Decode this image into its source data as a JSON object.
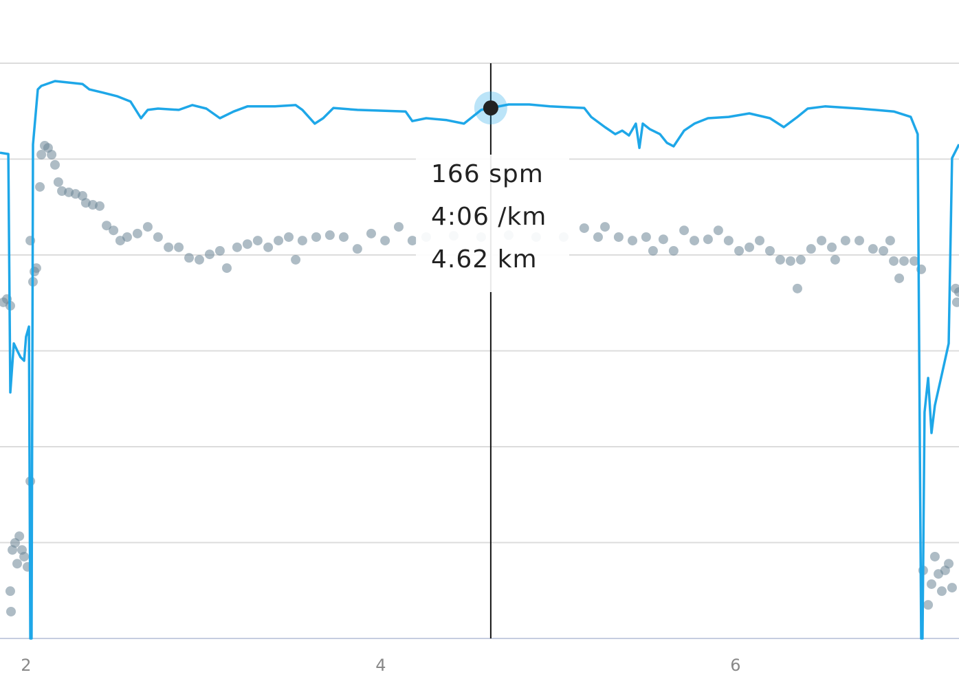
{
  "chart_data": {
    "type": "line-scatter",
    "xlim": [
      1.853,
      7.26
    ],
    "xticks": [
      2,
      4,
      6
    ],
    "ylim": [
      0,
      180
    ],
    "grid_y": [
      0,
      30,
      60,
      90,
      120,
      150,
      180
    ],
    "series": [
      {
        "type": "line",
        "color": "#1ea7e8",
        "x": [
          1.853,
          1.9,
          1.911,
          1.931,
          1.95,
          1.969,
          1.989,
          2.0,
          2.016,
          2.024,
          2.031,
          2.039,
          2.066,
          2.086,
          2.163,
          2.318,
          2.357,
          2.434,
          2.512,
          2.589,
          2.648,
          2.686,
          2.744,
          2.861,
          2.938,
          3.016,
          3.093,
          3.171,
          3.248,
          3.403,
          3.52,
          3.558,
          3.628,
          3.675,
          3.733,
          3.868,
          4.14,
          4.178,
          4.256,
          4.372,
          4.469,
          4.566,
          4.62,
          4.721,
          4.837,
          4.954,
          5.147,
          5.186,
          5.264,
          5.322,
          5.361,
          5.399,
          5.438,
          5.458,
          5.477,
          5.516,
          5.574,
          5.613,
          5.651,
          5.71,
          5.768,
          5.845,
          5.961,
          6.078,
          6.194,
          6.272,
          6.349,
          6.407,
          6.504,
          6.698,
          6.892,
          6.988,
          7.027,
          7.047,
          7.054,
          7.066,
          7.086,
          7.105,
          7.124,
          7.163,
          7.202,
          7.221,
          7.26
        ],
        "values": [
          152.0,
          151.6,
          77.0,
          92.3,
          90.1,
          88.0,
          86.9,
          94.4,
          97.6,
          0,
          0,
          154.6,
          171.8,
          172.9,
          174.4,
          173.5,
          171.8,
          170.8,
          169.7,
          168.0,
          162.8,
          165.4,
          165.8,
          165.4,
          166.9,
          165.8,
          162.8,
          164.9,
          166.5,
          166.5,
          166.9,
          165.4,
          161.1,
          162.8,
          166.0,
          165.4,
          164.9,
          161.9,
          162.8,
          162.2,
          161.1,
          165.4,
          166,
          167.1,
          167.1,
          166.5,
          166.0,
          163.2,
          160.0,
          157.8,
          158.9,
          157.4,
          161.1,
          153.5,
          161.1,
          159.4,
          157.8,
          155.1,
          154.0,
          158.9,
          161.1,
          162.8,
          163.2,
          164.3,
          162.8,
          160.0,
          163.2,
          165.8,
          166.5,
          165.8,
          164.9,
          163.2,
          157.8,
          0,
          0,
          70.8,
          81.5,
          64.3,
          72.9,
          82.6,
          92.3,
          150.3,
          154.6
        ]
      },
      {
        "type": "scatter",
        "color": "#6b8595",
        "x": [
          1.872,
          1.892,
          1.911,
          1.923,
          1.938,
          1.95,
          1.962,
          1.977,
          1.989,
          2.008,
          1.911,
          1.915,
          2.024,
          2.024,
          2.039,
          2.047,
          2.058,
          2.078,
          2.086,
          2.105,
          2.124,
          2.144,
          2.163,
          2.182,
          2.202,
          2.241,
          2.279,
          2.318,
          2.337,
          2.376,
          2.415,
          2.454,
          2.493,
          2.531,
          2.57,
          2.628,
          2.686,
          2.744,
          2.803,
          2.861,
          2.919,
          2.977,
          3.035,
          3.093,
          3.132,
          3.19,
          3.248,
          3.306,
          3.365,
          3.423,
          3.481,
          3.52,
          3.558,
          3.636,
          3.713,
          3.791,
          3.868,
          3.946,
          4.024,
          4.101,
          4.178,
          4.256,
          4.411,
          4.566,
          4.721,
          4.876,
          5.031,
          5.147,
          5.225,
          5.264,
          5.341,
          5.419,
          5.496,
          5.535,
          5.593,
          5.651,
          5.71,
          5.768,
          5.845,
          5.903,
          5.961,
          6.02,
          6.078,
          6.136,
          6.194,
          6.252,
          6.31,
          6.349,
          6.368,
          6.426,
          6.485,
          6.543,
          6.562,
          6.62,
          6.698,
          6.775,
          6.834,
          6.872,
          6.892,
          6.923,
          6.95,
          7.008,
          7.047,
          7.058,
          7.086,
          7.105,
          7.124,
          7.144,
          7.163,
          7.182,
          7.202,
          7.221,
          7.241,
          7.248,
          7.26
        ],
        "values": [
          105.2,
          106.2,
          104.1,
          27.7,
          29.9,
          23.4,
          32.0,
          27.7,
          25.6,
          22.4,
          14.8,
          8.4,
          49.2,
          124.5,
          111.6,
          114.8,
          115.9,
          141.3,
          151.4,
          154.2,
          153.5,
          151.4,
          148.2,
          142.8,
          140.0,
          139.6,
          139.1,
          138.5,
          136.3,
          135.7,
          135.3,
          129.2,
          127.7,
          124.5,
          125.6,
          126.7,
          128.8,
          125.6,
          122.4,
          122.4,
          119.1,
          118.5,
          120.2,
          121.3,
          115.9,
          122.4,
          123.4,
          124.5,
          122.4,
          124.5,
          125.6,
          118.5,
          124.5,
          125.6,
          126.2,
          125.6,
          121.9,
          126.7,
          124.5,
          128.8,
          124.5,
          125.6,
          126.0,
          125.6,
          126.2,
          125.6,
          125.6,
          128.4,
          125.6,
          128.8,
          125.6,
          124.5,
          125.6,
          121.3,
          124.9,
          121.3,
          127.7,
          124.5,
          124.9,
          127.7,
          124.5,
          121.3,
          122.4,
          124.5,
          121.3,
          118.5,
          118.1,
          109.5,
          118.5,
          121.9,
          124.5,
          122.4,
          118.5,
          124.5,
          124.5,
          121.9,
          121.3,
          124.5,
          118.1,
          112.7,
          118.1,
          118.1,
          115.5,
          21.3,
          10.5,
          17.0,
          25.6,
          20.2,
          14.8,
          21.3,
          23.4,
          15.9,
          109.5,
          105.2,
          108.4
        ]
      }
    ],
    "tooltip": {
      "x": 4.62,
      "value": 166,
      "lines": [
        "166 spm",
        "4:06 /km",
        "4.62 km"
      ]
    }
  }
}
